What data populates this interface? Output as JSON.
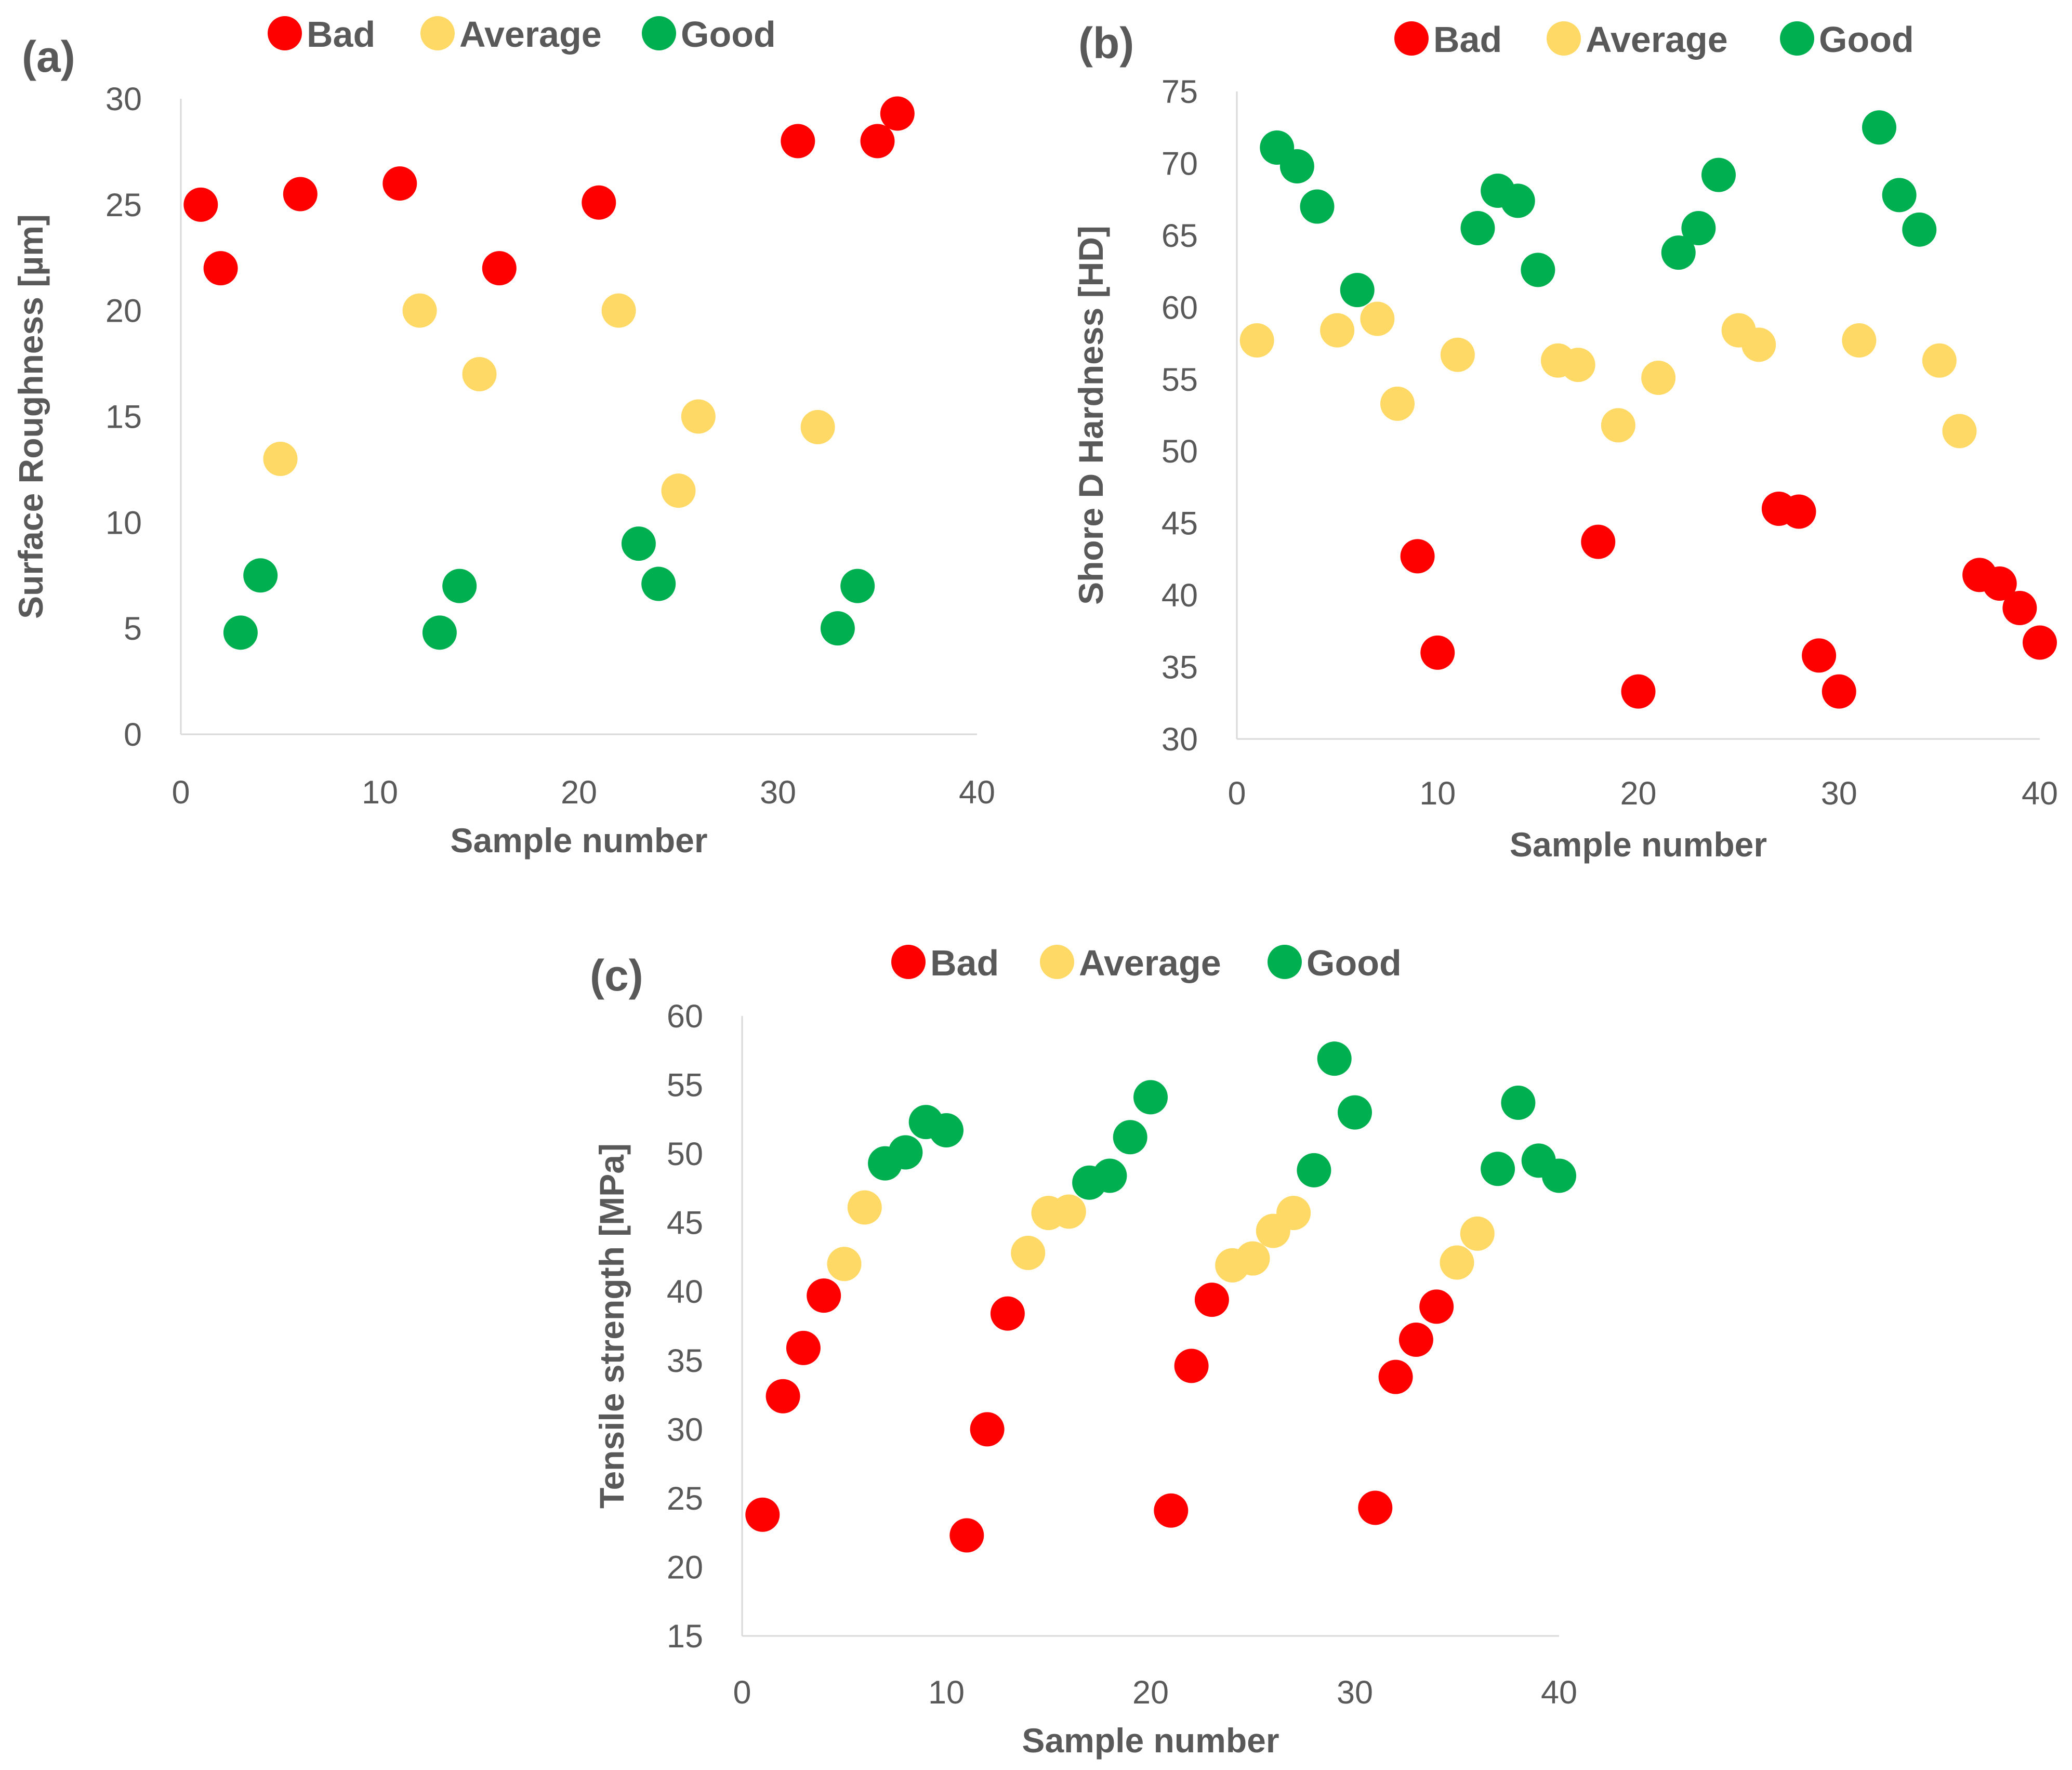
{
  "colors": {
    "Bad": "#ff0000",
    "Average": "#ffd966",
    "Good": "#00b050"
  },
  "chart_data": [
    {
      "type": "scatter",
      "panel_label": "(a)",
      "title": "",
      "xlabel": "Sample number",
      "ylabel": "Surface Roughness [µm]",
      "xlim": [
        0,
        40
      ],
      "ylim": [
        0,
        30
      ],
      "xticks": [
        0,
        10,
        20,
        30,
        40
      ],
      "yticks": [
        0,
        5,
        10,
        15,
        20,
        25,
        30
      ],
      "grid": false,
      "legend_position": "top",
      "series": [
        {
          "name": "Bad",
          "x": [
            1,
            2,
            6,
            11,
            16,
            21,
            31,
            35,
            36
          ],
          "y": [
            25,
            22,
            25.5,
            26,
            22,
            25.1,
            28,
            28,
            29.3
          ]
        },
        {
          "name": "Average",
          "x": [
            5,
            12,
            15,
            22,
            25,
            26,
            32
          ],
          "y": [
            13,
            20,
            17,
            20,
            11.5,
            15,
            14.5
          ]
        },
        {
          "name": "Good",
          "x": [
            3,
            4,
            13,
            14,
            23,
            24,
            33,
            34
          ],
          "y": [
            4.8,
            7.5,
            4.8,
            7,
            9,
            7.1,
            5,
            7
          ]
        }
      ]
    },
    {
      "type": "scatter",
      "panel_label": "(b)",
      "title": "",
      "xlabel": "Sample number",
      "ylabel": "Shore D Hardness [HD]",
      "xlim": [
        0,
        40
      ],
      "ylim": [
        30,
        75
      ],
      "xticks": [
        0,
        10,
        20,
        30,
        40
      ],
      "yticks": [
        30,
        35,
        40,
        45,
        50,
        55,
        60,
        65,
        70,
        75
      ],
      "grid": false,
      "legend_position": "top",
      "series": [
        {
          "name": "Bad",
          "x": [
            9,
            10,
            18,
            20,
            27,
            28,
            29,
            30,
            37,
            38,
            39,
            40
          ],
          "y": [
            42.7,
            36,
            43.7,
            33.3,
            46,
            45.8,
            35.8,
            33.3,
            41.4,
            40.8,
            39.1,
            36.7
          ]
        },
        {
          "name": "Average",
          "x": [
            1,
            5,
            7,
            8,
            11,
            16,
            17,
            19,
            21,
            25,
            26,
            31,
            35,
            36
          ],
          "y": [
            57.7,
            58.4,
            59.2,
            53.3,
            56.7,
            56.3,
            56,
            51.8,
            55.1,
            58.4,
            57.4,
            57.7,
            56.3,
            51.4
          ]
        },
        {
          "name": "Good",
          "x": [
            2,
            3,
            4,
            6,
            12,
            13,
            14,
            15,
            22,
            23,
            24,
            32,
            33,
            34
          ],
          "y": [
            71.1,
            69.8,
            67,
            61.2,
            65.5,
            68.1,
            67.4,
            62.6,
            63.8,
            65.5,
            69.2,
            72.5,
            67.8,
            65.4
          ]
        }
      ]
    },
    {
      "type": "scatter",
      "panel_label": "(c)",
      "title": "",
      "xlabel": "Sample number",
      "ylabel": "Tensile strength [MPa]",
      "xlim": [
        0,
        40
      ],
      "ylim": [
        15,
        60
      ],
      "xticks": [
        0,
        10,
        20,
        30,
        40
      ],
      "yticks": [
        15,
        20,
        25,
        30,
        35,
        40,
        45,
        50,
        55,
        60
      ],
      "grid": false,
      "legend_position": "top",
      "series": [
        {
          "name": "Bad",
          "x": [
            1,
            2,
            3,
            4,
            11,
            12,
            13,
            21,
            22,
            23,
            31,
            32,
            33,
            34
          ],
          "y": [
            23.8,
            32.4,
            35.9,
            39.7,
            22.3,
            30,
            38.4,
            24.1,
            34.6,
            39.4,
            24.3,
            33.8,
            36.5,
            38.9
          ]
        },
        {
          "name": "Average",
          "x": [
            5,
            6,
            14,
            15,
            16,
            24,
            25,
            26,
            27,
            35,
            36
          ],
          "y": [
            42,
            46.1,
            42.8,
            45.7,
            45.8,
            41.9,
            42.4,
            44.4,
            45.7,
            42.1,
            44.2
          ]
        },
        {
          "name": "Good",
          "x": [
            7,
            8,
            9,
            10,
            17,
            18,
            19,
            20,
            28,
            29,
            30,
            37,
            38,
            39,
            40
          ],
          "y": [
            49.3,
            50.1,
            52.3,
            51.7,
            47.9,
            48.4,
            51.2,
            54.1,
            48.8,
            56.9,
            53,
            48.9,
            53.7,
            49.5,
            48.4
          ]
        }
      ]
    }
  ]
}
